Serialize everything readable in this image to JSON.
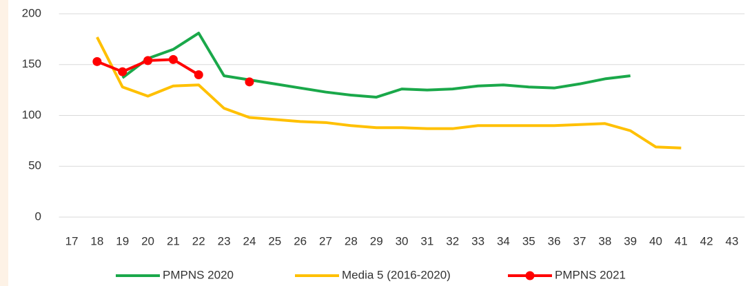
{
  "chart_data": {
    "type": "line",
    "categories": [
      "17",
      "18",
      "19",
      "20",
      "21",
      "22",
      "23",
      "24",
      "25",
      "26",
      "27",
      "28",
      "29",
      "30",
      "31",
      "32",
      "33",
      "34",
      "35",
      "36",
      "37",
      "38",
      "39",
      "40",
      "41",
      "42",
      "43"
    ],
    "series": [
      {
        "name": "PMPNS 2020",
        "color": "#1aa84a",
        "values": [
          null,
          null,
          137,
          156,
          165,
          181,
          139,
          135,
          131,
          127,
          123,
          120,
          118,
          126,
          125,
          126,
          129,
          130,
          128,
          127,
          131,
          136,
          139,
          null,
          null,
          null,
          null
        ]
      },
      {
        "name": "Media 5 (2016-2020)",
        "color": "#ffc000",
        "values": [
          null,
          177,
          128,
          119,
          129,
          130,
          107,
          98,
          96,
          94,
          93,
          90,
          88,
          88,
          87,
          87,
          90,
          90,
          90,
          90,
          91,
          92,
          85,
          69,
          68,
          null,
          null
        ]
      },
      {
        "name": "PMPNS 2021",
        "color": "#ff0000",
        "markers": true,
        "values": [
          null,
          153,
          143,
          154,
          155,
          140,
          null,
          133,
          null,
          null,
          null,
          null,
          null,
          null,
          null,
          null,
          null,
          null,
          null,
          null,
          null,
          null,
          null,
          null,
          null,
          null,
          null
        ]
      }
    ],
    "ylim": [
      0,
      200
    ],
    "yticks": [
      0,
      50,
      100,
      150,
      200
    ],
    "grid": true,
    "legend": "bottom"
  }
}
